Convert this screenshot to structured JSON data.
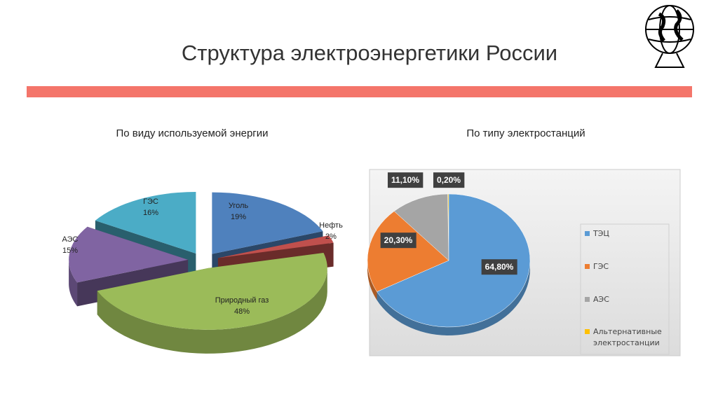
{
  "title": "Структура электроэнергетики России",
  "chart_data": [
    {
      "type": "pie3d",
      "title": "По виду используемой энергии",
      "categories": [
        "Уголь",
        "Нефть",
        "Природный газ",
        "АЭС",
        "ГЭС"
      ],
      "values": [
        19,
        2,
        48,
        15,
        16
      ],
      "value_labels": [
        "19%",
        "2%",
        "48%",
        "15%",
        "16%"
      ],
      "colors": [
        "#4f81bd",
        "#c0504d",
        "#9bbb59",
        "#8064a2",
        "#4bacc6"
      ]
    },
    {
      "type": "pie3d",
      "title": "По типу электростанций",
      "categories": [
        "ТЭЦ",
        "ГЭС",
        "АЭС",
        "Альтернативные электростанции"
      ],
      "values": [
        64.8,
        20.3,
        11.1,
        0.2
      ],
      "value_labels": [
        "64,80%",
        "20,30%",
        "11,10%",
        "0,20%"
      ],
      "colors": [
        "#5b9bd5",
        "#ed7d31",
        "#a5a5a5",
        "#ffc000"
      ],
      "legend": "right"
    }
  ]
}
